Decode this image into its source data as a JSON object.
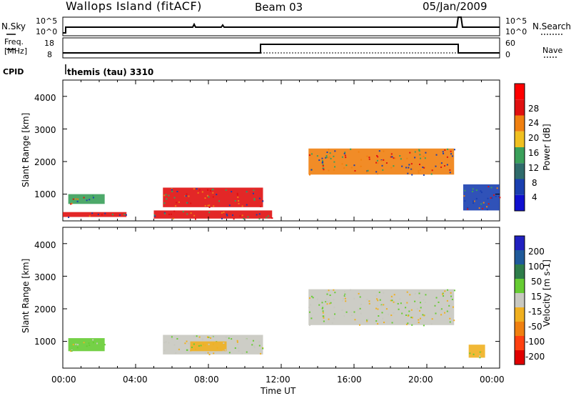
{
  "header": {
    "station": "Wallops Island (fitACF)",
    "beam": "Beam 03",
    "date": "05/Jan/2009"
  },
  "noise_panel": {
    "left_label": "N.Sky",
    "right_label": "N.Search",
    "left_ticks": [
      "10^5",
      "10^0"
    ],
    "right_ticks": [
      "10^5",
      "10^0"
    ]
  },
  "freq_panel": {
    "left_label_1": "Freq.",
    "left_label_2": "[MHz]",
    "right_label": "Nave",
    "left_ticks": [
      "18",
      "8"
    ],
    "right_ticks": [
      "60",
      "0"
    ]
  },
  "cpid": {
    "label": "CPID",
    "text": "themis (tau) 3310"
  },
  "range_plots": {
    "ylabel": "Slant Range [km]",
    "yticks": [
      "1000",
      "2000",
      "3000",
      "4000"
    ],
    "xticks": [
      "00:00",
      "04:00",
      "08:00",
      "12:00",
      "16:00",
      "20:00",
      "00:00"
    ],
    "xlabel": "Time UT"
  },
  "power_scale": {
    "label": "Power [dB]",
    "ticks": [
      "4",
      "8",
      "12",
      "16",
      "20",
      "24",
      "28"
    ],
    "colors": [
      "#1010d0",
      "#1a3fb0",
      "#2f6b6b",
      "#3aa05a",
      "#f0c020",
      "#f08010",
      "#e01010",
      "#ff0000"
    ]
  },
  "velocity_scale": {
    "label": "Velocity [m s-1]",
    "ticks": [
      "200",
      "100",
      "50",
      "15",
      "-15",
      "-50",
      "-100",
      "-200"
    ],
    "colors": [
      "#2020c0",
      "#1f5a9a",
      "#2e7d4a",
      "#66cc33",
      "#c8c8c0",
      "#f0b020",
      "#f08010",
      "#ff4010",
      "#e00000"
    ]
  },
  "chart_data": {
    "type": "heatmap",
    "x_range_hours": [
      0,
      24
    ],
    "y_range_km": [
      180,
      4500
    ],
    "power_regions": [
      {
        "t0": 0.3,
        "t1": 2.3,
        "r0": 700,
        "r1": 1000,
        "level": "green"
      },
      {
        "t0": 0.0,
        "t1": 3.5,
        "r0": 300,
        "r1": 450,
        "level": "red"
      },
      {
        "t0": 5.5,
        "t1": 11.0,
        "r0": 600,
        "r1": 1200,
        "level": "red"
      },
      {
        "t0": 5.0,
        "t1": 11.5,
        "r0": 250,
        "r1": 500,
        "level": "red"
      },
      {
        "t0": 13.5,
        "t1": 21.5,
        "r0": 1600,
        "r1": 2400,
        "level": "orange"
      },
      {
        "t0": 22.0,
        "t1": 24.0,
        "r0": 500,
        "r1": 1300,
        "level": "blue"
      }
    ],
    "velocity_regions": [
      {
        "t0": 0.3,
        "t1": 2.3,
        "r0": 700,
        "r1": 1100,
        "level": "green"
      },
      {
        "t0": 5.5,
        "t1": 11.0,
        "r0": 600,
        "r1": 1200,
        "level": "gray"
      },
      {
        "t0": 7.0,
        "t1": 9.0,
        "r0": 700,
        "r1": 1000,
        "level": "orange"
      },
      {
        "t0": 13.5,
        "t1": 21.5,
        "r0": 1500,
        "r1": 2600,
        "level": "gray"
      },
      {
        "t0": 22.3,
        "t1": 23.2,
        "r0": 500,
        "r1": 900,
        "level": "orange"
      }
    ]
  }
}
